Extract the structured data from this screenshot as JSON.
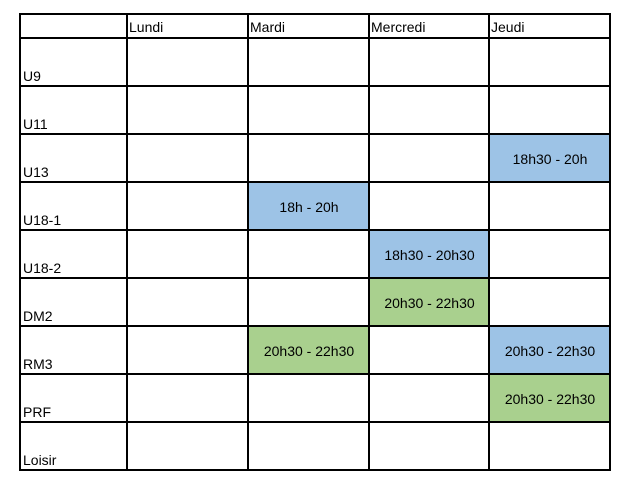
{
  "table": {
    "columns": [
      "Lundi",
      "Mardi",
      "Mercredi",
      "Jeudi"
    ],
    "rows": [
      {
        "label": "U9",
        "cells": [
          null,
          null,
          null,
          null
        ]
      },
      {
        "label": "U11",
        "cells": [
          null,
          null,
          null,
          null
        ]
      },
      {
        "label": "U13",
        "cells": [
          null,
          null,
          null,
          {
            "text": "18h30 - 20h",
            "color": "#9dc3e6"
          }
        ]
      },
      {
        "label": "U18-1",
        "cells": [
          null,
          {
            "text": "18h - 20h",
            "color": "#9dc3e6"
          },
          null,
          null
        ]
      },
      {
        "label": "U18-2",
        "cells": [
          null,
          null,
          {
            "text": "18h30 - 20h30",
            "color": "#9dc3e6"
          },
          null
        ]
      },
      {
        "label": "DM2",
        "cells": [
          null,
          null,
          {
            "text": "20h30 - 22h30",
            "color": "#a9d08e"
          },
          null
        ]
      },
      {
        "label": "RM3",
        "cells": [
          null,
          {
            "text": "20h30 - 22h30",
            "color": "#a9d08e"
          },
          null,
          {
            "text": "20h30 - 22h30",
            "color": "#9dc3e6"
          }
        ]
      },
      {
        "label": "PRF",
        "cells": [
          null,
          null,
          null,
          {
            "text": "20h30 - 22h30",
            "color": "#a9d08e"
          }
        ]
      },
      {
        "label": "Loisir",
        "cells": [
          null,
          null,
          null,
          null
        ]
      }
    ]
  }
}
